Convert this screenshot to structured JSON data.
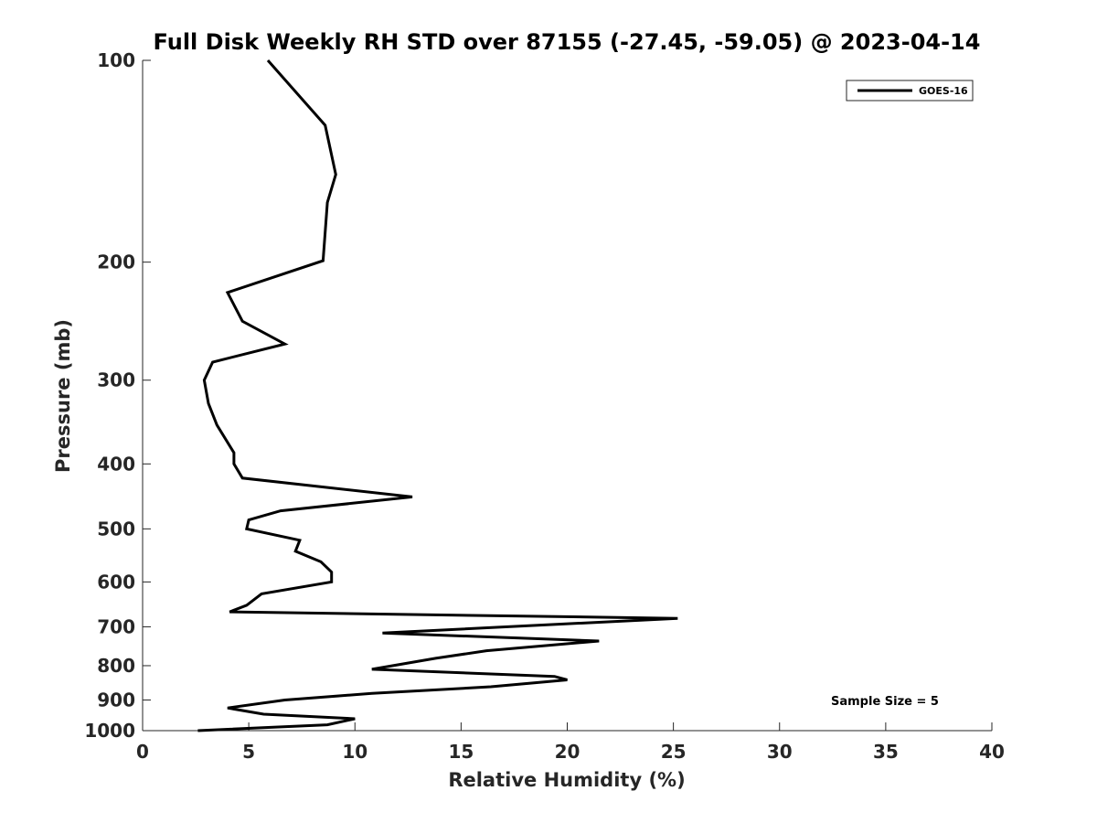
{
  "chart_data": {
    "type": "line",
    "title": "Full Disk Weekly RH STD over 87155 (-27.45, -59.05) @ 2023-04-14",
    "xlabel": "Relative Humidity (%)",
    "ylabel": "Pressure (mb)",
    "xlim": [
      0,
      40
    ],
    "ylim": [
      100,
      1000
    ],
    "yscale": "log",
    "y_reversed": true,
    "grid": false,
    "xticks": [
      0,
      5,
      10,
      15,
      20,
      25,
      30,
      35,
      40
    ],
    "xtick_labels": [
      "0",
      "5",
      "10",
      "15",
      "20",
      "25",
      "30",
      "35",
      "40"
    ],
    "yticks": [
      100,
      200,
      300,
      400,
      500,
      600,
      700,
      800,
      900,
      1000
    ],
    "ytick_labels": [
      "100",
      "200",
      "300",
      "400",
      "500",
      "600",
      "700",
      "800",
      "900",
      "1000"
    ],
    "legend_position": "top-right",
    "series": [
      {
        "name": "GOES-16",
        "color": "#000000",
        "x": [
          5.9,
          8.6,
          9.1,
          8.7,
          8.5,
          4.0,
          4.7,
          6.7,
          3.3,
          2.9,
          3.1,
          3.5,
          4.3,
          4.3,
          4.7,
          12.7,
          6.5,
          5.0,
          4.9,
          7.4,
          7.2,
          8.4,
          8.9,
          8.9,
          5.6,
          4.9,
          4.1,
          25.2,
          11.3,
          21.5,
          16.2,
          13.8,
          10.8,
          19.4,
          20.0,
          16.4,
          10.8,
          6.7,
          4.0,
          5.7,
          10.0,
          8.7,
          2.6
        ],
        "y": [
          100,
          125,
          148,
          163,
          199,
          222,
          245,
          265,
          282,
          300,
          325,
          350,
          385,
          400,
          420,
          448,
          470,
          485,
          500,
          520,
          540,
          560,
          580,
          600,
          625,
          650,
          665,
          680,
          715,
          735,
          760,
          780,
          810,
          830,
          840,
          860,
          880,
          900,
          925,
          945,
          960,
          980,
          1000
        ]
      }
    ],
    "annotations": [
      "Sample Size = 5"
    ]
  }
}
